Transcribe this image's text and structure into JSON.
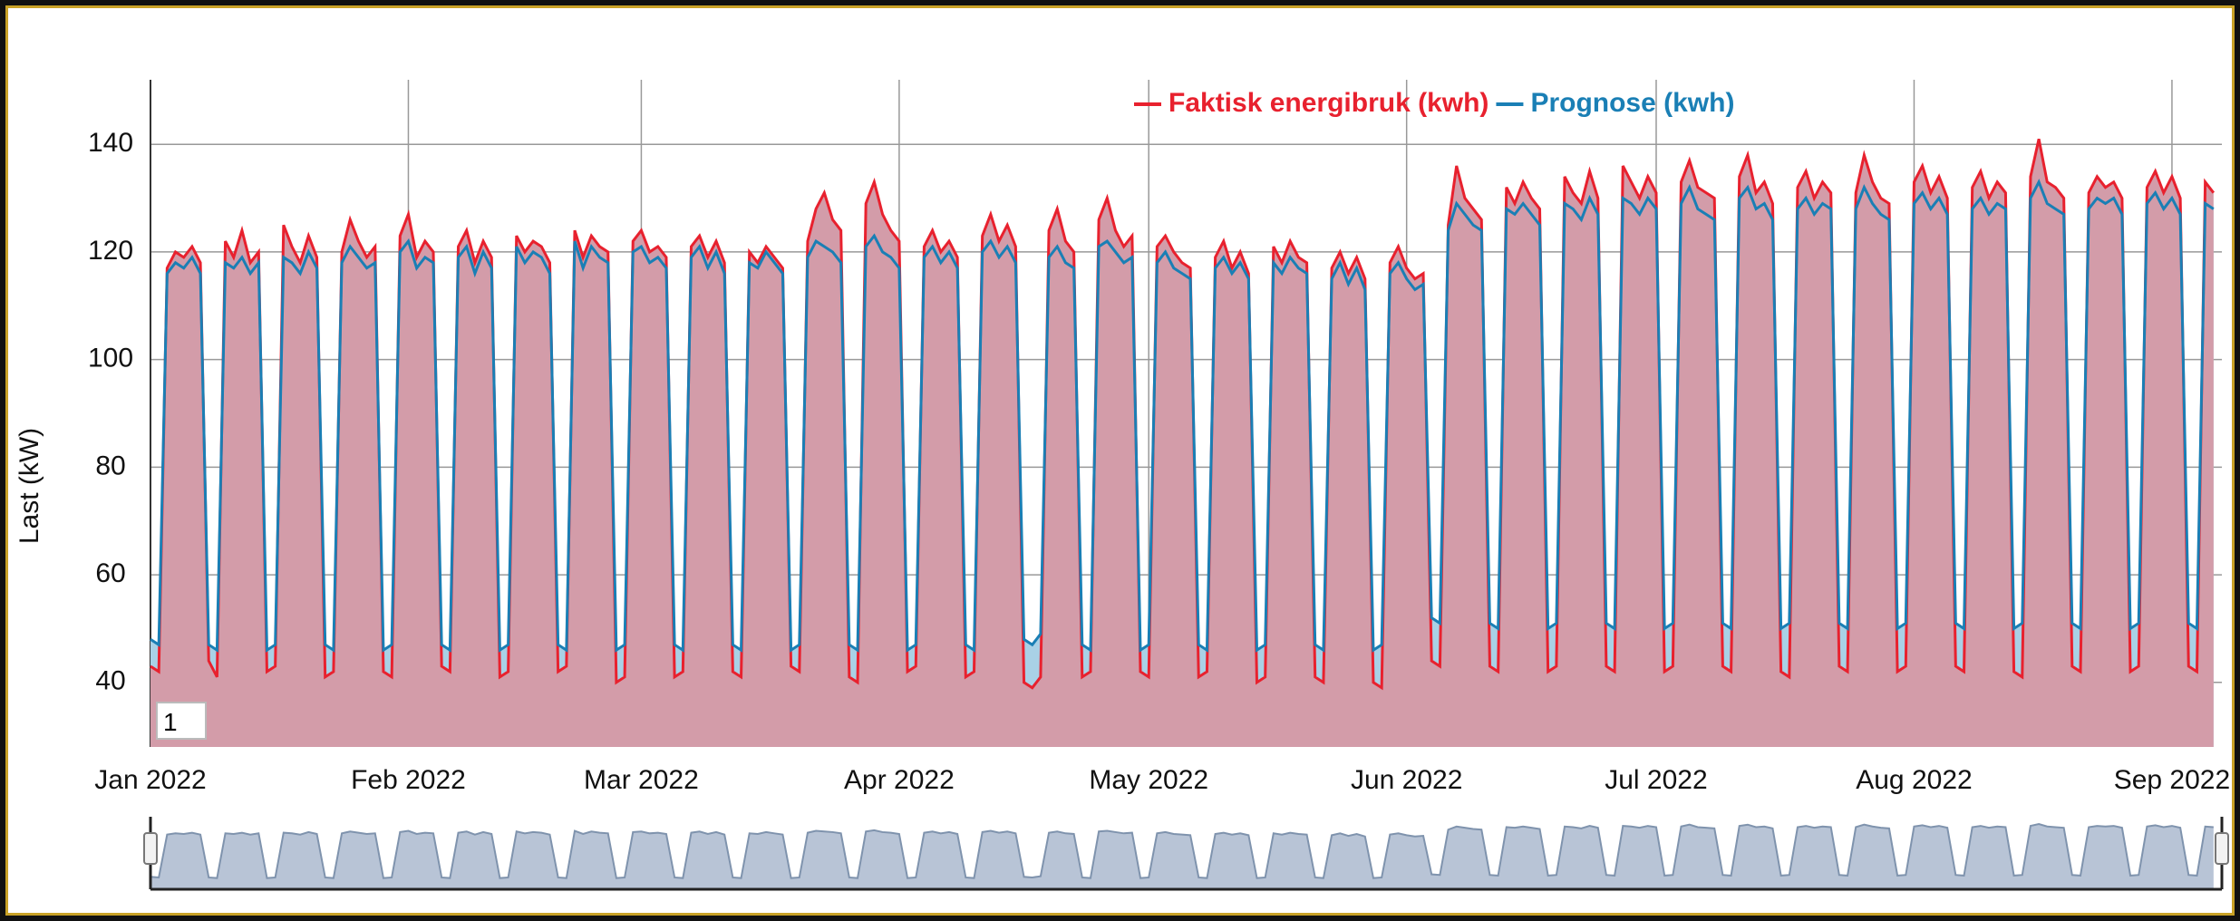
{
  "chart_data": {
    "type": "line",
    "y_label": "Last (kW)",
    "range_input": "1",
    "xlim": [
      0,
      249
    ],
    "xticks": [
      {
        "value": 0,
        "label": "Jan 2022"
      },
      {
        "value": 31,
        "label": "Feb 2022"
      },
      {
        "value": 59,
        "label": "Mar 2022"
      },
      {
        "value": 90,
        "label": "Apr 2022"
      },
      {
        "value": 120,
        "label": "May 2022"
      },
      {
        "value": 151,
        "label": "Jun 2022"
      },
      {
        "value": 181,
        "label": "Jul 2022"
      },
      {
        "value": 212,
        "label": "Aug 2022"
      },
      {
        "value": 243,
        "label": "Sep 2022"
      }
    ],
    "ylim": [
      28,
      152
    ],
    "yticks": [
      40,
      60,
      80,
      100,
      120,
      140
    ],
    "grid": true,
    "legend": "top",
    "x": [
      0,
      1,
      2,
      3,
      4,
      5,
      6,
      7,
      8,
      9,
      10,
      11,
      12,
      13,
      14,
      15,
      16,
      17,
      18,
      19,
      20,
      21,
      22,
      23,
      24,
      25,
      26,
      27,
      28,
      29,
      30,
      31,
      32,
      33,
      34,
      35,
      36,
      37,
      38,
      39,
      40,
      41,
      42,
      43,
      44,
      45,
      46,
      47,
      48,
      49,
      50,
      51,
      52,
      53,
      54,
      55,
      56,
      57,
      58,
      59,
      60,
      61,
      62,
      63,
      64,
      65,
      66,
      67,
      68,
      69,
      70,
      71,
      72,
      73,
      74,
      75,
      76,
      77,
      78,
      79,
      80,
      81,
      82,
      83,
      84,
      85,
      86,
      87,
      88,
      89,
      90,
      91,
      92,
      93,
      94,
      95,
      96,
      97,
      98,
      99,
      100,
      101,
      102,
      103,
      104,
      105,
      106,
      107,
      108,
      109,
      110,
      111,
      112,
      113,
      114,
      115,
      116,
      117,
      118,
      119,
      120,
      121,
      122,
      123,
      124,
      125,
      126,
      127,
      128,
      129,
      130,
      131,
      132,
      133,
      134,
      135,
      136,
      137,
      138,
      139,
      140,
      141,
      142,
      143,
      144,
      145,
      146,
      147,
      148,
      149,
      150,
      151,
      152,
      153,
      154,
      155,
      156,
      157,
      158,
      159,
      160,
      161,
      162,
      163,
      164,
      165,
      166,
      167,
      168,
      169,
      170,
      171,
      172,
      173,
      174,
      175,
      176,
      177,
      178,
      179,
      180,
      181,
      182,
      183,
      184,
      185,
      186,
      187,
      188,
      189,
      190,
      191,
      192,
      193,
      194,
      195,
      196,
      197,
      198,
      199,
      200,
      201,
      202,
      203,
      204,
      205,
      206,
      207,
      208,
      209,
      210,
      211,
      212,
      213,
      214,
      215,
      216,
      217,
      218,
      219,
      220,
      221,
      222,
      223,
      224,
      225,
      226,
      227,
      228,
      229,
      230,
      231,
      232,
      233,
      234,
      235,
      236,
      237,
      238,
      239,
      240,
      241,
      242,
      243,
      244,
      245,
      246,
      247,
      248
    ],
    "series": [
      {
        "name": "Faktisk energibruk (kwh)",
        "color": "#e8212e",
        "fill": "#d39ca9",
        "values": [
          43,
          42,
          117,
          120,
          119,
          121,
          118,
          44,
          41,
          122,
          119,
          124,
          118,
          120,
          42,
          43,
          125,
          121,
          118,
          123,
          119,
          41,
          42,
          120,
          126,
          122,
          119,
          121,
          42,
          41,
          123,
          127,
          119,
          122,
          120,
          43,
          42,
          121,
          124,
          118,
          122,
          119,
          41,
          42,
          123,
          120,
          122,
          121,
          118,
          42,
          43,
          124,
          119,
          123,
          121,
          120,
          40,
          41,
          122,
          124,
          120,
          121,
          119,
          41,
          42,
          121,
          123,
          119,
          122,
          118,
          42,
          41,
          120,
          118,
          121,
          119,
          117,
          43,
          42,
          122,
          128,
          131,
          126,
          124,
          41,
          40,
          129,
          133,
          127,
          124,
          122,
          42,
          43,
          121,
          124,
          120,
          122,
          119,
          41,
          42,
          123,
          127,
          122,
          125,
          121,
          40,
          39,
          41,
          124,
          128,
          122,
          120,
          41,
          42,
          126,
          130,
          124,
          121,
          123,
          42,
          41,
          121,
          123,
          120,
          118,
          117,
          41,
          42,
          119,
          122,
          117,
          120,
          116,
          40,
          41,
          121,
          118,
          122,
          119,
          118,
          41,
          40,
          117,
          120,
          116,
          119,
          115,
          40,
          39,
          118,
          121,
          117,
          115,
          116,
          44,
          43,
          125,
          136,
          130,
          128,
          126,
          43,
          42,
          132,
          129,
          133,
          130,
          128,
          42,
          43,
          134,
          131,
          129,
          135,
          130,
          43,
          42,
          136,
          133,
          130,
          134,
          131,
          42,
          43,
          133,
          137,
          132,
          131,
          130,
          43,
          42,
          134,
          138,
          131,
          133,
          129,
          42,
          41,
          132,
          135,
          130,
          133,
          131,
          43,
          42,
          131,
          138,
          133,
          130,
          129,
          42,
          43,
          133,
          136,
          131,
          134,
          130,
          43,
          42,
          132,
          135,
          130,
          133,
          131,
          42,
          41,
          134,
          141,
          133,
          132,
          130,
          43,
          42,
          131,
          134,
          132,
          133,
          130,
          42,
          43,
          132,
          135,
          131,
          134,
          130,
          43,
          42,
          133,
          131
        ]
      },
      {
        "name": "Prognose (kwh)",
        "color": "#1a7fb5",
        "fill": "#a9d1e6",
        "values": [
          48,
          47,
          116,
          118,
          117,
          119,
          116,
          47,
          46,
          118,
          117,
          119,
          116,
          118,
          46,
          47,
          119,
          118,
          116,
          120,
          117,
          47,
          46,
          118,
          121,
          119,
          117,
          118,
          46,
          47,
          120,
          122,
          117,
          119,
          118,
          47,
          46,
          119,
          121,
          116,
          120,
          117,
          46,
          47,
          121,
          118,
          120,
          119,
          116,
          47,
          46,
          122,
          117,
          121,
          119,
          118,
          46,
          47,
          120,
          121,
          118,
          119,
          117,
          47,
          46,
          119,
          121,
          117,
          120,
          116,
          47,
          46,
          118,
          117,
          120,
          118,
          116,
          46,
          47,
          119,
          122,
          121,
          120,
          118,
          47,
          46,
          121,
          123,
          120,
          119,
          117,
          46,
          47,
          119,
          121,
          118,
          120,
          117,
          47,
          46,
          120,
          122,
          119,
          121,
          118,
          48,
          47,
          49,
          119,
          121,
          118,
          117,
          47,
          46,
          121,
          122,
          120,
          118,
          119,
          46,
          47,
          118,
          120,
          117,
          116,
          115,
          47,
          46,
          117,
          119,
          116,
          118,
          115,
          46,
          47,
          118,
          116,
          119,
          117,
          116,
          47,
          46,
          115,
          118,
          114,
          117,
          113,
          46,
          47,
          116,
          118,
          115,
          113,
          114,
          52,
          51,
          124,
          129,
          127,
          125,
          124,
          51,
          50,
          128,
          127,
          129,
          127,
          125,
          50,
          51,
          129,
          128,
          126,
          130,
          127,
          51,
          50,
          130,
          129,
          127,
          130,
          128,
          50,
          51,
          129,
          132,
          128,
          127,
          126,
          51,
          50,
          130,
          132,
          128,
          129,
          126,
          50,
          51,
          128,
          130,
          127,
          129,
          128,
          51,
          50,
          128,
          132,
          129,
          127,
          126,
          50,
          51,
          129,
          131,
          128,
          130,
          127,
          51,
          50,
          128,
          130,
          127,
          129,
          128,
          50,
          51,
          130,
          133,
          129,
          128,
          127,
          51,
          50,
          128,
          130,
          129,
          130,
          127,
          50,
          51,
          129,
          131,
          128,
          130,
          127,
          51,
          50,
          129,
          128
        ]
      }
    ]
  }
}
